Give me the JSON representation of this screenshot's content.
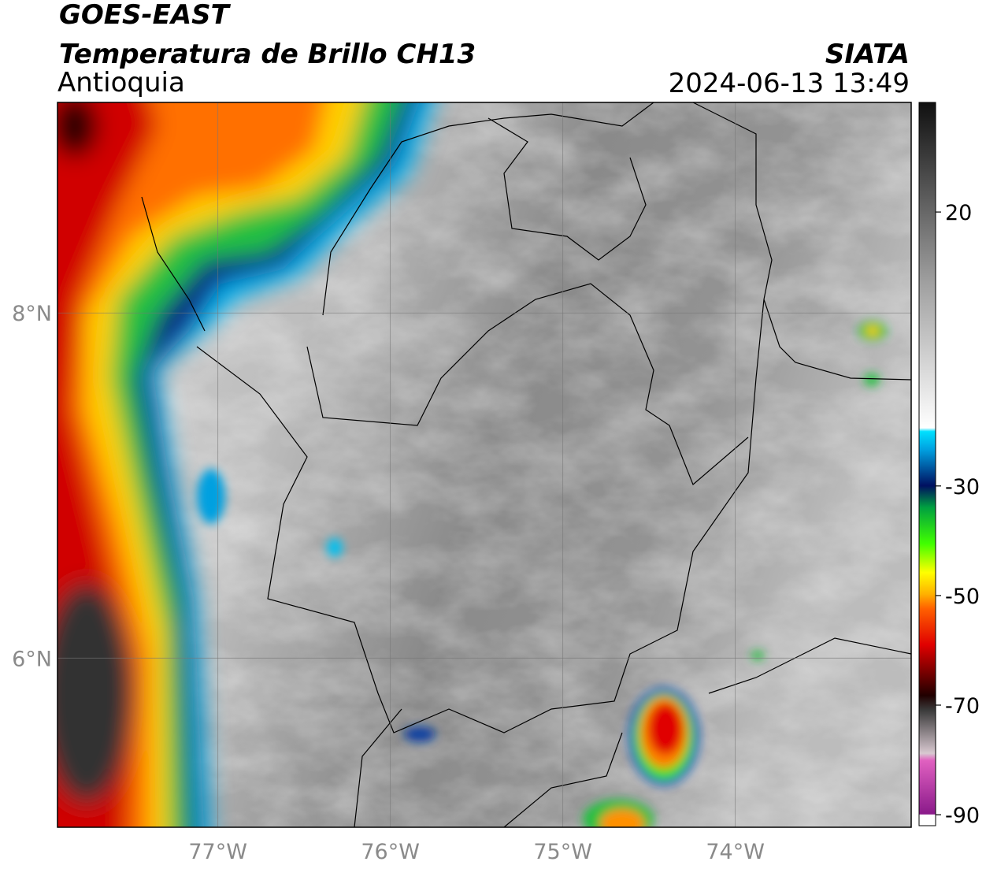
{
  "header": {
    "title": "GOES-EAST",
    "subtitle": "Temperatura de Brillo CH13",
    "region": "Antioquia",
    "source": "SIATA",
    "datetime": "2024-06-13 13:49"
  },
  "map": {
    "lonlim": [
      -77.93,
      -72.98
    ],
    "latlim": [
      5.02,
      9.22
    ],
    "lon_ticks": [
      {
        "value": -77,
        "label": "77°W"
      },
      {
        "value": -76,
        "label": "76°W"
      },
      {
        "value": -75,
        "label": "75°W"
      },
      {
        "value": -74,
        "label": "74°W"
      }
    ],
    "lat_ticks": [
      {
        "value": 8,
        "label": "8°N"
      },
      {
        "value": 6,
        "label": "6°N"
      }
    ],
    "grid": true
  },
  "colorbar": {
    "lim": [
      -92,
      40
    ],
    "ticks": [
      20,
      -30,
      -50,
      -70,
      -90
    ]
  }
}
